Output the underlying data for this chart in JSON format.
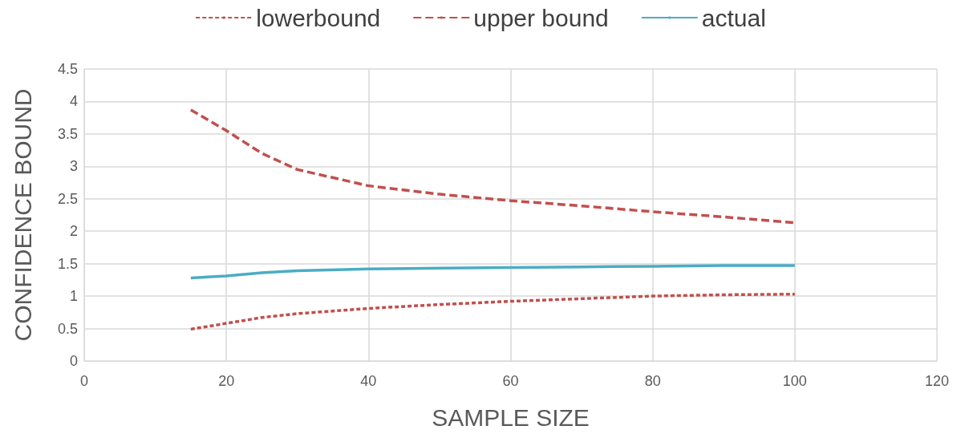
{
  "chart_data": {
    "type": "line",
    "xlabel": "SAMPLE SIZE",
    "ylabel": "CONFIDENCE BOUND",
    "x": [
      15,
      20,
      25,
      30,
      40,
      50,
      60,
      70,
      80,
      90,
      100
    ],
    "series": [
      {
        "name": "lowerbound",
        "color": "#c0504d",
        "line_style": "dotted",
        "values": [
          0.49,
          0.58,
          0.67,
          0.73,
          0.81,
          0.87,
          0.92,
          0.96,
          1.0,
          1.02,
          1.03
        ]
      },
      {
        "name": "upper bound",
        "color": "#c0504d",
        "line_style": "dashed",
        "values": [
          3.87,
          3.55,
          3.2,
          2.95,
          2.7,
          2.57,
          2.47,
          2.39,
          2.3,
          2.22,
          2.13
        ]
      },
      {
        "name": "actual",
        "color": "#4bacc6",
        "line_style": "solid",
        "values": [
          1.28,
          1.31,
          1.36,
          1.39,
          1.42,
          1.43,
          1.44,
          1.45,
          1.46,
          1.47,
          1.47
        ]
      }
    ],
    "xlim": [
      0,
      120
    ],
    "xticks": [
      0,
      20,
      40,
      60,
      80,
      100,
      120
    ],
    "ylim": [
      0,
      4.5
    ],
    "yticks": [
      0,
      0.5,
      1,
      1.5,
      2,
      2.5,
      3,
      3.5,
      4,
      4.5
    ],
    "grid": true,
    "legend": "top",
    "marker": "none"
  }
}
